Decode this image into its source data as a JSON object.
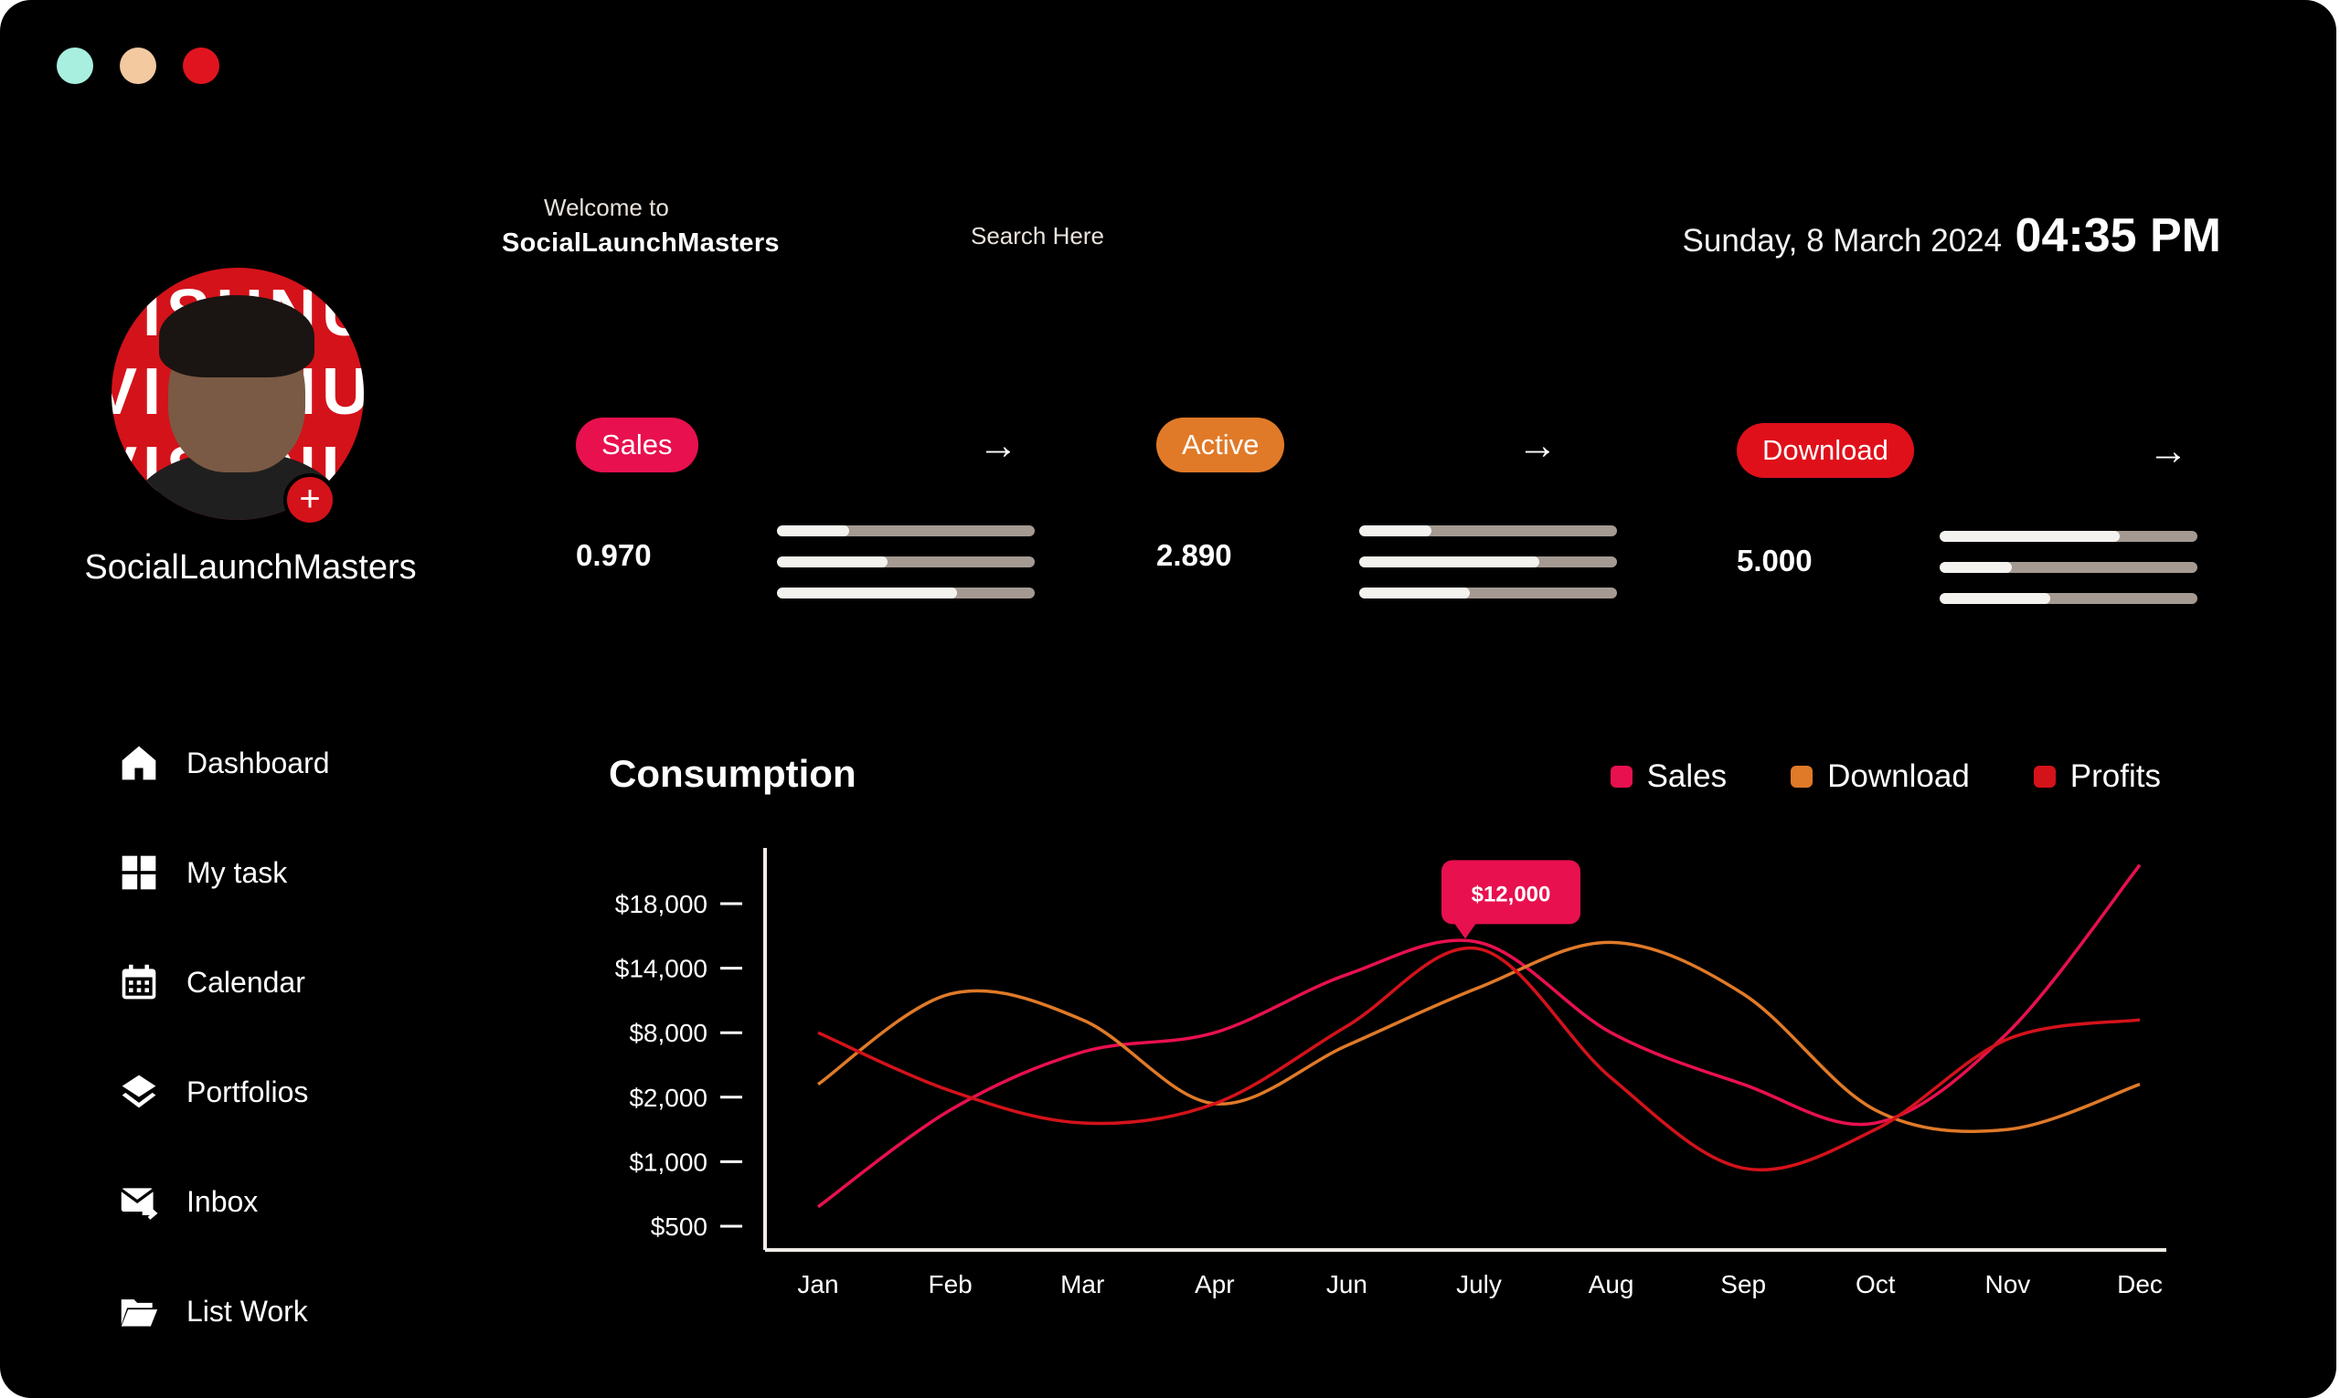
{
  "window": {
    "controls": [
      {
        "name": "minimize",
        "color": "#a8efe0"
      },
      {
        "name": "maximize",
        "color": "#f3c9a0"
      },
      {
        "name": "close",
        "color": "#e0141e"
      }
    ]
  },
  "header": {
    "welcome": "Welcome to",
    "brand": "SocialLaunchMasters",
    "search_placeholder": "Search Here",
    "date": "Sunday, 8 March 2024",
    "time": "04:35 PM"
  },
  "profile": {
    "name": "SocialLaunchMasters",
    "avatar_text": "VISHNU"
  },
  "nav": [
    {
      "label": "Dashboard",
      "icon": "home-icon"
    },
    {
      "label": "My task",
      "icon": "grid-icon"
    },
    {
      "label": "Calendar",
      "icon": "calendar-icon"
    },
    {
      "label": "Portfolios",
      "icon": "layers-icon"
    },
    {
      "label": "Inbox",
      "icon": "mail-icon"
    },
    {
      "label": "List Work",
      "icon": "folder-icon"
    }
  ],
  "stats": [
    {
      "label": "Sales",
      "value": "0.970",
      "color": "#e8104f",
      "bars": [
        0.28,
        0.43,
        0.7
      ]
    },
    {
      "label": "Active",
      "value": "2.890",
      "color": "#e07a28",
      "bars": [
        0.28,
        0.7,
        0.43
      ]
    },
    {
      "label": "Download",
      "value": "5.000",
      "color": "#e0101a",
      "bars": [
        0.7,
        0.28,
        0.43
      ]
    }
  ],
  "chart_data": {
    "type": "line",
    "title": "Consumption",
    "categories": [
      "Jan",
      "Feb",
      "Mar",
      "Apr",
      "Jun",
      "July",
      "Aug",
      "Sep",
      "Oct",
      "Nov",
      "Dec"
    ],
    "y_ticks": [
      "$18,000",
      "$14,000",
      "$8,000",
      "$2,000",
      "$1,000",
      "$500"
    ],
    "legend_position": "top-right",
    "tooltip": {
      "label": "$12,000",
      "category": "July",
      "series": "Sales"
    },
    "series": [
      {
        "name": "Sales",
        "color": "#e8104f",
        "values": [
          0.3,
          1.8,
          2.7,
          3.0,
          3.9,
          4.4,
          3.0,
          2.2,
          1.6,
          3.0,
          5.6
        ]
      },
      {
        "name": "Download",
        "color": "#e07a28",
        "values": [
          2.2,
          3.6,
          3.2,
          1.9,
          2.8,
          3.7,
          4.4,
          3.6,
          1.8,
          1.5,
          2.2
        ]
      },
      {
        "name": "Profits",
        "color": "#d4121a",
        "values": [
          3.0,
          2.1,
          1.6,
          1.9,
          3.1,
          4.3,
          2.3,
          0.9,
          1.5,
          2.9,
          3.2
        ]
      }
    ]
  }
}
